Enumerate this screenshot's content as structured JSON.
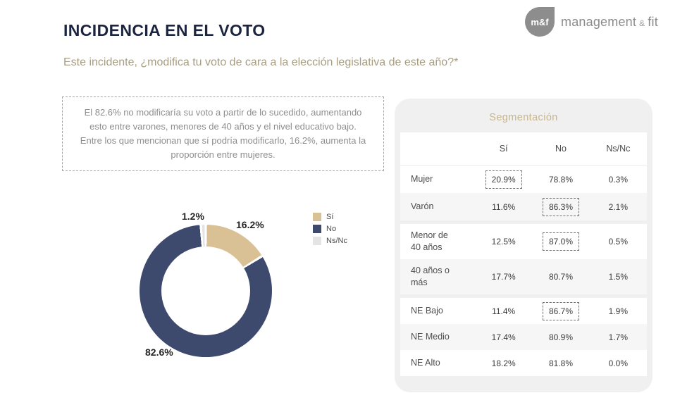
{
  "brand": {
    "badge": "m&f",
    "name_parts": [
      "management",
      "&",
      "fit"
    ]
  },
  "page": {
    "title": "INCIDENCIA EN EL VOTO",
    "question": "Este incidente, ¿modifica tu voto de cara a la elección legislativa de este año?*"
  },
  "insight": {
    "lines": [
      "El 82.6% no modificaría su voto a partir de lo sucedido, aumentando esto entre varones, menores de 40 años y el nivel educativo bajo.",
      "Entre los que mencionan que sí podría modificarlo, 16.2%, aumenta la proporción entre mujeres."
    ]
  },
  "chart_data": {
    "type": "pie",
    "subtype": "donut",
    "categories": [
      "Sí",
      "No",
      "Ns/Nc"
    ],
    "values": [
      16.2,
      82.6,
      1.2
    ],
    "unit": "%",
    "segment_colors": [
      "#d9c195",
      "#3d4a6e",
      "#e4e4e4"
    ],
    "labels": {
      "si": "16.2%",
      "no": "82.6%",
      "nsnc": "1.2%"
    },
    "legend_position": "right",
    "start_angle_deg": 0,
    "direction": "clockwise"
  },
  "segmentation": {
    "title": "Segmentación",
    "columns": [
      "Sí",
      "No",
      "Ns/Nc"
    ],
    "groups": [
      {
        "rows": [
          {
            "label": "Mujer",
            "si": "20.9%",
            "no": "78.8%",
            "nsnc": "0.3%",
            "highlight": "si"
          },
          {
            "label": "Varón",
            "si": "11.6%",
            "no": "86.3%",
            "nsnc": "2.1%",
            "highlight": "no"
          }
        ]
      },
      {
        "rows": [
          {
            "label": "Menor de 40 años",
            "si": "12.5%",
            "no": "87.0%",
            "nsnc": "0.5%",
            "highlight": "no"
          },
          {
            "label": "40 años o más",
            "si": "17.7%",
            "no": "80.7%",
            "nsnc": "1.5%",
            "highlight": null
          }
        ]
      },
      {
        "rows": [
          {
            "label": "NE Bajo",
            "si": "11.4%",
            "no": "86.7%",
            "nsnc": "1.9%",
            "highlight": "no"
          },
          {
            "label": "NE Medio",
            "si": "17.4%",
            "no": "80.9%",
            "nsnc": "1.7%",
            "highlight": null
          },
          {
            "label": "NE Alto",
            "si": "18.2%",
            "no": "81.8%",
            "nsnc": "0.0%",
            "highlight": null
          }
        ]
      }
    ]
  },
  "theme": {
    "title_navy": "#1c2440",
    "accent_gold": "#c7b68e",
    "question_olive": "#a79e81",
    "card_gray": "#f1f0f1"
  }
}
